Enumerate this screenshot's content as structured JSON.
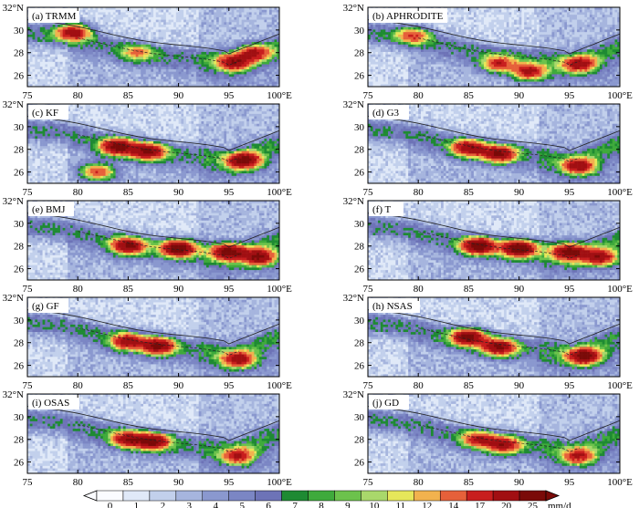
{
  "figure": {
    "panels_per_row": 2,
    "lon_ticks": [
      "75",
      "80",
      "85",
      "90",
      "95",
      "100°E"
    ],
    "lat_ticks": [
      "26",
      "28",
      "30",
      "32°N"
    ]
  },
  "chart_data": [
    {
      "type": "heatmap",
      "label": "(a) TRMM",
      "xlim": [
        75,
        100
      ],
      "ylim": [
        25,
        32
      ],
      "x_ticks": [
        75,
        80,
        85,
        90,
        95,
        100
      ],
      "y_ticks": [
        26,
        28,
        30,
        32
      ],
      "units": "mm/d",
      "peaks": [
        {
          "lon": 79.6,
          "lat": 29.8,
          "value": 18
        },
        {
          "lon": 86,
          "lat": 28,
          "value": 8
        },
        {
          "lon": 95.5,
          "lat": 27.2,
          "value": 17
        },
        {
          "lon": 97.5,
          "lat": 28,
          "value": 14
        }
      ]
    },
    {
      "type": "heatmap",
      "label": "(b) APHRODITE",
      "xlim": [
        75,
        100
      ],
      "ylim": [
        25,
        32
      ],
      "x_ticks": [
        75,
        80,
        85,
        90,
        95,
        100
      ],
      "y_ticks": [
        26,
        28,
        30,
        32
      ],
      "units": "mm/d",
      "peaks": [
        {
          "lon": 79.5,
          "lat": 29.5,
          "value": 11
        },
        {
          "lon": 88,
          "lat": 27,
          "value": 14
        },
        {
          "lon": 91,
          "lat": 26.3,
          "value": 17
        },
        {
          "lon": 96,
          "lat": 27,
          "value": 16
        }
      ]
    },
    {
      "type": "heatmap",
      "label": "(c) KF",
      "xlim": [
        75,
        100
      ],
      "ylim": [
        25,
        32
      ],
      "x_ticks": [
        75,
        80,
        85,
        90,
        95,
        100
      ],
      "y_ticks": [
        26,
        28,
        30,
        32
      ],
      "units": "mm/d",
      "peaks": [
        {
          "lon": 84,
          "lat": 28.2,
          "value": 22
        },
        {
          "lon": 87,
          "lat": 27.8,
          "value": 20
        },
        {
          "lon": 96.5,
          "lat": 27,
          "value": 22
        },
        {
          "lon": 82,
          "lat": 26,
          "value": 14
        }
      ]
    },
    {
      "type": "heatmap",
      "label": "(d) G3",
      "xlim": [
        75,
        100
      ],
      "ylim": [
        25,
        32
      ],
      "x_ticks": [
        75,
        80,
        85,
        90,
        95,
        100
      ],
      "y_ticks": [
        26,
        28,
        30,
        32
      ],
      "units": "mm/d",
      "peaks": [
        {
          "lon": 85,
          "lat": 28.1,
          "value": 18
        },
        {
          "lon": 88,
          "lat": 27.6,
          "value": 20
        },
        {
          "lon": 96,
          "lat": 26.5,
          "value": 17
        }
      ]
    },
    {
      "type": "heatmap",
      "label": "(e) BMJ",
      "xlim": [
        75,
        100
      ],
      "ylim": [
        25,
        32
      ],
      "x_ticks": [
        75,
        80,
        85,
        90,
        95,
        100
      ],
      "y_ticks": [
        26,
        28,
        30,
        32
      ],
      "units": "mm/d",
      "peaks": [
        {
          "lon": 85,
          "lat": 28,
          "value": 20
        },
        {
          "lon": 90,
          "lat": 27.8,
          "value": 24
        },
        {
          "lon": 95,
          "lat": 27.5,
          "value": 22
        },
        {
          "lon": 98,
          "lat": 27,
          "value": 20
        }
      ]
    },
    {
      "type": "heatmap",
      "label": "(f) T",
      "xlim": [
        75,
        100
      ],
      "ylim": [
        25,
        32
      ],
      "x_ticks": [
        75,
        80,
        85,
        90,
        95,
        100
      ],
      "y_ticks": [
        26,
        28,
        30,
        32
      ],
      "units": "mm/d",
      "peaks": [
        {
          "lon": 86,
          "lat": 28,
          "value": 24
        },
        {
          "lon": 90,
          "lat": 27.8,
          "value": 25
        },
        {
          "lon": 95,
          "lat": 27.5,
          "value": 22
        },
        {
          "lon": 98,
          "lat": 27,
          "value": 18
        }
      ]
    },
    {
      "type": "heatmap",
      "label": "(g) GF",
      "xlim": [
        75,
        100
      ],
      "ylim": [
        25,
        32
      ],
      "x_ticks": [
        75,
        80,
        85,
        90,
        95,
        100
      ],
      "y_ticks": [
        26,
        28,
        30,
        32
      ],
      "units": "mm/d",
      "peaks": [
        {
          "lon": 85,
          "lat": 28.1,
          "value": 17
        },
        {
          "lon": 88,
          "lat": 27.7,
          "value": 20
        },
        {
          "lon": 96,
          "lat": 26.5,
          "value": 17
        }
      ]
    },
    {
      "type": "heatmap",
      "label": "(h) NSAS",
      "xlim": [
        75,
        100
      ],
      "ylim": [
        25,
        32
      ],
      "x_ticks": [
        75,
        80,
        85,
        90,
        95,
        100
      ],
      "y_ticks": [
        26,
        28,
        30,
        32
      ],
      "units": "mm/d",
      "peaks": [
        {
          "lon": 85,
          "lat": 28.5,
          "value": 22
        },
        {
          "lon": 88,
          "lat": 27.6,
          "value": 20
        },
        {
          "lon": 96.5,
          "lat": 26.8,
          "value": 22
        }
      ]
    },
    {
      "type": "heatmap",
      "label": "(i) OSAS",
      "xlim": [
        75,
        100
      ],
      "ylim": [
        25,
        32
      ],
      "x_ticks": [
        75,
        80,
        85,
        90,
        95,
        100
      ],
      "y_ticks": [
        26,
        28,
        30,
        32
      ],
      "units": "mm/d",
      "peaks": [
        {
          "lon": 85,
          "lat": 28,
          "value": 17
        },
        {
          "lon": 87.5,
          "lat": 27.8,
          "value": 20
        },
        {
          "lon": 96,
          "lat": 26.5,
          "value": 14
        }
      ]
    },
    {
      "type": "heatmap",
      "label": "(j) GD",
      "xlim": [
        75,
        100
      ],
      "ylim": [
        25,
        32
      ],
      "x_ticks": [
        75,
        80,
        85,
        90,
        95,
        100
      ],
      "y_ticks": [
        26,
        28,
        30,
        32
      ],
      "units": "mm/d",
      "peaks": [
        {
          "lon": 86,
          "lat": 28,
          "value": 14
        },
        {
          "lon": 88.5,
          "lat": 27.5,
          "value": 17
        },
        {
          "lon": 96,
          "lat": 26.5,
          "value": 14
        }
      ]
    }
  ],
  "colorbar": {
    "levels": [
      "0",
      "1",
      "2",
      "3",
      "4",
      "5",
      "6",
      "7",
      "8",
      "9",
      "10",
      "11",
      "12",
      "14",
      "17",
      "20",
      "25"
    ],
    "colors": [
      "#fbfcff",
      "#e0e9f8",
      "#c2d0ec",
      "#a6b5de",
      "#8a98cf",
      "#7b86c4",
      "#6d73b7",
      "#1e8a33",
      "#3faa3c",
      "#6cc24c",
      "#a9d86b",
      "#e6e75a",
      "#f2b24e",
      "#e6603a",
      "#c81e1e",
      "#a10f12",
      "#7a0a08"
    ],
    "units": "mm/d"
  }
}
